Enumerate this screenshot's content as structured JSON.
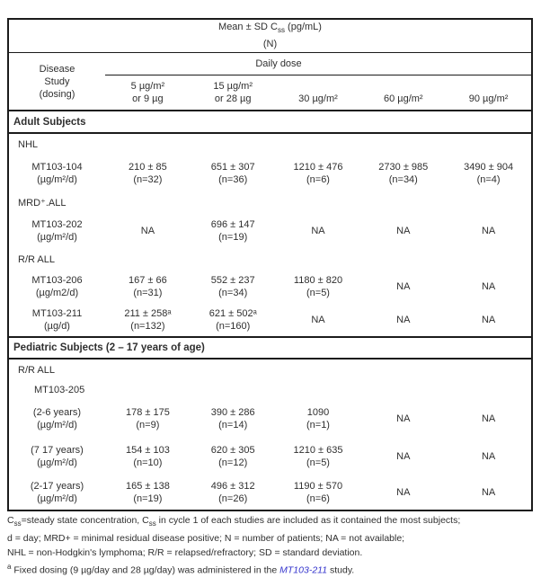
{
  "table": {
    "title": {
      "pre": "Mean ± SD C",
      "sub": "ss",
      "post": " (pg/mL)",
      "line2": "(N)"
    },
    "daily_dose_label": "Daily dose",
    "stub": {
      "line1": "Disease",
      "line2": "Study",
      "line3": "(dosing)"
    },
    "dose_columns": [
      {
        "line1": "5 µg/m²",
        "line2": "or 9 µg"
      },
      {
        "line1": "15 µg/m²",
        "line2": "or 28 µg"
      },
      {
        "line1": "30 µg/m²",
        "line2": ""
      },
      {
        "line1": "60 µg/m²",
        "line2": ""
      },
      {
        "line1": "90 µg/m²",
        "line2": ""
      }
    ],
    "section_adult": "Adult Subjects",
    "section_pediatric": "Pediatric Subjects (2 – 17 years of age)",
    "groups": {
      "nhl": "NHL",
      "mrd": "MRD⁺.ALL",
      "rr_adult": "R/R ALL",
      "rr_ped": "R/R ALL",
      "mt205": "MT103-205"
    },
    "rows": [
      {
        "name": "MT103-104",
        "dosing": "(µg/m²/d)",
        "cells": [
          {
            "v": "210 ± 85",
            "n": "(n=32)"
          },
          {
            "v": "651 ± 307",
            "n": "(n=36)"
          },
          {
            "v": "1210 ± 476",
            "n": "(n=6)"
          },
          {
            "v": "2730 ± 985",
            "n": "(n=34)"
          },
          {
            "v": "3490 ± 904",
            "n": "(n=4)"
          }
        ]
      },
      {
        "name": "MT103-202",
        "dosing": "(µg/m²/d)",
        "cells": [
          {
            "v": "NA",
            "n": ""
          },
          {
            "v": "696 ± 147",
            "n": "(n=19)"
          },
          {
            "v": "NA",
            "n": ""
          },
          {
            "v": "NA",
            "n": ""
          },
          {
            "v": "NA",
            "n": ""
          }
        ]
      },
      {
        "name": "MT103-206",
        "dosing": "(µg/m2/d)",
        "cells": [
          {
            "v": "167 ± 66",
            "n": "(n=31)"
          },
          {
            "v": "552 ± 237",
            "n": "(n=34)"
          },
          {
            "v": "1180 ± 820",
            "n": "(n=5)"
          },
          {
            "v": "NA",
            "n": ""
          },
          {
            "v": "NA",
            "n": ""
          }
        ]
      },
      {
        "name": "MT103-211",
        "dosing": "(µg/d)",
        "cells": [
          {
            "v": "211 ± 258ᵃ",
            "n": "(n=132)"
          },
          {
            "v": "621 ± 502ᵃ",
            "n": "(n=160)"
          },
          {
            "v": "NA",
            "n": ""
          },
          {
            "v": "NA",
            "n": ""
          },
          {
            "v": "NA",
            "n": ""
          }
        ]
      },
      {
        "name": "(2-6 years)",
        "dosing": "(µg/m²/d)",
        "cells": [
          {
            "v": "178 ± 175",
            "n": "(n=9)"
          },
          {
            "v": "390 ± 286",
            "n": "(n=14)"
          },
          {
            "v": "1090",
            "n": "(n=1)"
          },
          {
            "v": "NA",
            "n": ""
          },
          {
            "v": "NA",
            "n": ""
          }
        ]
      },
      {
        "name": "(7 17 years)",
        "dosing": "(µg/m²/d)",
        "cells": [
          {
            "v": "154 ± 103",
            "n": "(n=10)"
          },
          {
            "v": "620 ± 305",
            "n": "(n=12)"
          },
          {
            "v": "1210 ± 635",
            "n": "(n=5)"
          },
          {
            "v": "NA",
            "n": ""
          },
          {
            "v": "NA",
            "n": ""
          }
        ]
      },
      {
        "name": "(2-17 years)",
        "dosing": "(µg/m²/d)",
        "cells": [
          {
            "v": "165 ± 138",
            "n": "(n=19)"
          },
          {
            "v": "496 ± 312",
            "n": "(n=26)"
          },
          {
            "v": "1190 ± 570",
            "n": "(n=6)"
          },
          {
            "v": "NA",
            "n": ""
          },
          {
            "v": "NA",
            "n": ""
          }
        ]
      }
    ]
  },
  "footnotes": {
    "line1": {
      "s1": "C",
      "sub1": "ss",
      "s2": "=steady state concentration, C",
      "sub2": "ss",
      "s3": " in cycle 1 of each studies are included as it contained the most subjects;"
    },
    "line2": "d = day; MRD+ = minimal residual disease positive; N = number of patients; NA = not available;",
    "line3": "NHL = non-Hodgkin's lymphoma; R/R = relapsed/refractory;  SD = standard deviation.",
    "line4": {
      "sup": "a",
      "s1": " Fixed dosing (9 µg/day and 28 µg/day) was administered in the ",
      "link": "MT103-211",
      "s2": " study."
    }
  },
  "colors": {
    "link_blue": "#3333CC",
    "text": "#2f2f2f",
    "border": "#1b1b1b"
  }
}
